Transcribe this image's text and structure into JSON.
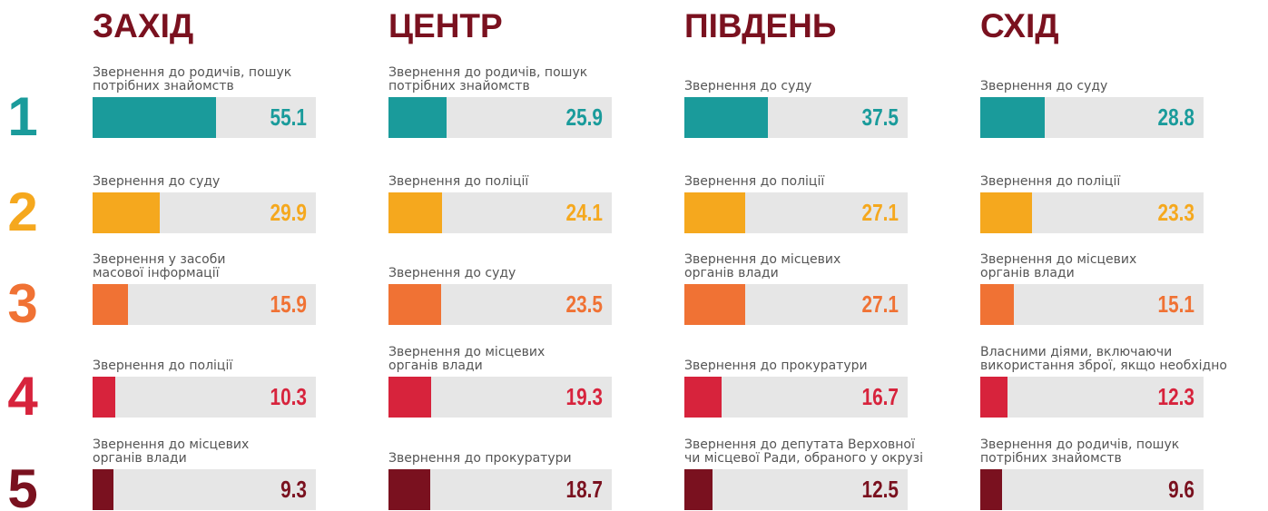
{
  "ranks": [
    1,
    2,
    3,
    4,
    5
  ],
  "chart_data": [
    {
      "type": "bar",
      "title": "ЗАХІД",
      "xlim": [
        0,
        100
      ],
      "colors": [
        "#1a9b9b",
        "#f5a81e",
        "#f07234",
        "#d7233c",
        "#7a111f"
      ],
      "categories": [
        "Звернення до родичів, пошук\nпотрібних знайомств",
        "Звернення до суду",
        "Звернення у засоби\nмасової інформації",
        "Звернення до поліції",
        "Звернення до місцевих\nорганів влади"
      ],
      "values": [
        55.1,
        29.9,
        15.9,
        10.3,
        9.3
      ]
    },
    {
      "type": "bar",
      "title": "ЦЕНТР",
      "xlim": [
        0,
        100
      ],
      "colors": [
        "#1a9b9b",
        "#f5a81e",
        "#f07234",
        "#d7233c",
        "#7a111f"
      ],
      "categories": [
        "Звернення до родичів, пошук\nпотрібних знайомств",
        "Звернення до поліції",
        "Звернення до суду",
        "Звернення до місцевих\nорганів влади",
        "Звернення до прокуратури"
      ],
      "values": [
        25.9,
        24.1,
        23.5,
        19.3,
        18.7
      ]
    },
    {
      "type": "bar",
      "title": "ПІВДЕНЬ",
      "xlim": [
        0,
        100
      ],
      "colors": [
        "#1a9b9b",
        "#f5a81e",
        "#f07234",
        "#d7233c",
        "#7a111f"
      ],
      "categories": [
        "Звернення до суду",
        "Звернення до поліції",
        "Звернення до місцевих\nорганів влади",
        "Звернення до прокуратури",
        "Звернення до депутата Верховної\nчи місцевої Ради, обраного у окрузі"
      ],
      "values": [
        37.5,
        27.1,
        27.1,
        16.7,
        12.5
      ]
    },
    {
      "type": "bar",
      "title": "СХІД",
      "xlim": [
        0,
        100
      ],
      "colors": [
        "#1a9b9b",
        "#f5a81e",
        "#f07234",
        "#d7233c",
        "#7a111f"
      ],
      "categories": [
        "Звернення до суду",
        "Звернення до поліції",
        "Звернення до місцевих\nорганів влади",
        "Власними діями, включаючи\nвикористання зброї, якщо необхідно",
        "Звернення до родичів, пошук\nпотрібних знайомств"
      ],
      "values": [
        28.8,
        23.3,
        15.1,
        12.3,
        9.6
      ]
    }
  ]
}
